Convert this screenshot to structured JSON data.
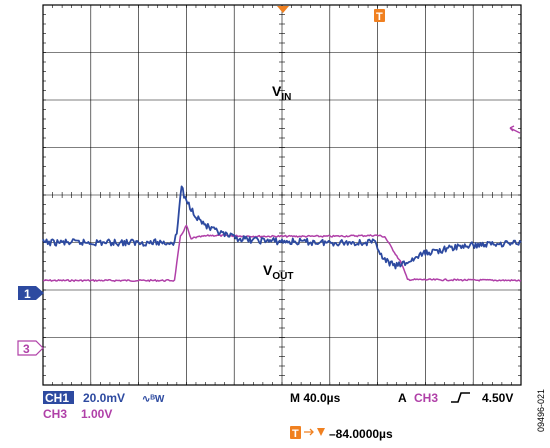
{
  "chart_data": {
    "type": "line",
    "title": "",
    "xlabel": "",
    "ylabel": "",
    "grid": true,
    "x_unit": "µs",
    "time_per_div_us": 40,
    "divisions": {
      "horizontal": 10,
      "vertical": 8
    },
    "xlim": [
      -200,
      200
    ],
    "series": [
      {
        "name": "V_IN",
        "label_main": "V",
        "label_sub": "IN",
        "channel": "CH3",
        "volts_per_div": 1.0,
        "ground_marker": "3",
        "ground_div": -2.5,
        "color": "#b040a8",
        "points": [
          [
            -200,
            0.7
          ],
          [
            -90,
            0.7
          ],
          [
            -85,
            1.62
          ],
          [
            -80,
            1.86
          ],
          [
            -76,
            1.56
          ],
          [
            -74,
            1.6
          ],
          [
            -60,
            1.65
          ],
          [
            -20,
            1.63
          ],
          [
            40,
            1.63
          ],
          [
            80,
            1.65
          ],
          [
            86,
            1.62
          ],
          [
            100,
            1.06
          ],
          [
            105,
            0.72
          ],
          [
            200,
            0.7
          ]
        ]
      },
      {
        "name": "V_OUT",
        "label_main": "V",
        "label_sub": "OUT",
        "channel": "CH1",
        "volts_per_div": 0.02,
        "bandwidth_limit": true,
        "ground_marker": "1",
        "ground_div": -1.0,
        "color": "#2d4aa0",
        "points": [
          [
            -200,
            0.0
          ],
          [
            -90,
            0.0
          ],
          [
            -88,
            0.2
          ],
          [
            -84,
            1.22
          ],
          [
            -82,
            0.95
          ],
          [
            -78,
            0.8
          ],
          [
            -70,
            0.5
          ],
          [
            -60,
            0.28
          ],
          [
            -45,
            0.13
          ],
          [
            -30,
            0.06
          ],
          [
            0,
            0.02
          ],
          [
            40,
            0.0
          ],
          [
            79,
            0.0
          ],
          [
            84,
            -0.35
          ],
          [
            95,
            -0.5
          ],
          [
            105,
            -0.42
          ],
          [
            120,
            -0.22
          ],
          [
            150,
            -0.08
          ],
          [
            180,
            -0.02
          ],
          [
            200,
            0.0
          ]
        ]
      }
    ],
    "trigger": {
      "channel": "CH3",
      "slope": "rising",
      "level": "4.50V",
      "delay": "−84.0000µs"
    }
  },
  "readout": {
    "ch1_tag": "CH1",
    "ch1_scale": "20.0mV",
    "ch1_bw_glyph": "∿ᴮW",
    "ch3_tag": "CH3",
    "ch3_scale": "1.00V",
    "timebase": "M 40.0µs",
    "acq_mode": "A",
    "trig_channel": "CH3",
    "trig_level": "4.50V",
    "trig_delay": "–84.0000µs"
  },
  "markers": {
    "trigger_tag": "T",
    "ch1_tag": "1",
    "ch3_tag": "3"
  },
  "figure_id": "09496-021",
  "colors": {
    "vin": "#b040a8",
    "vout": "#2d4aa0",
    "trigger": "#f08020",
    "ch1_tag_bg": "#2d4aa0",
    "ch3_text": "#b040a8"
  }
}
